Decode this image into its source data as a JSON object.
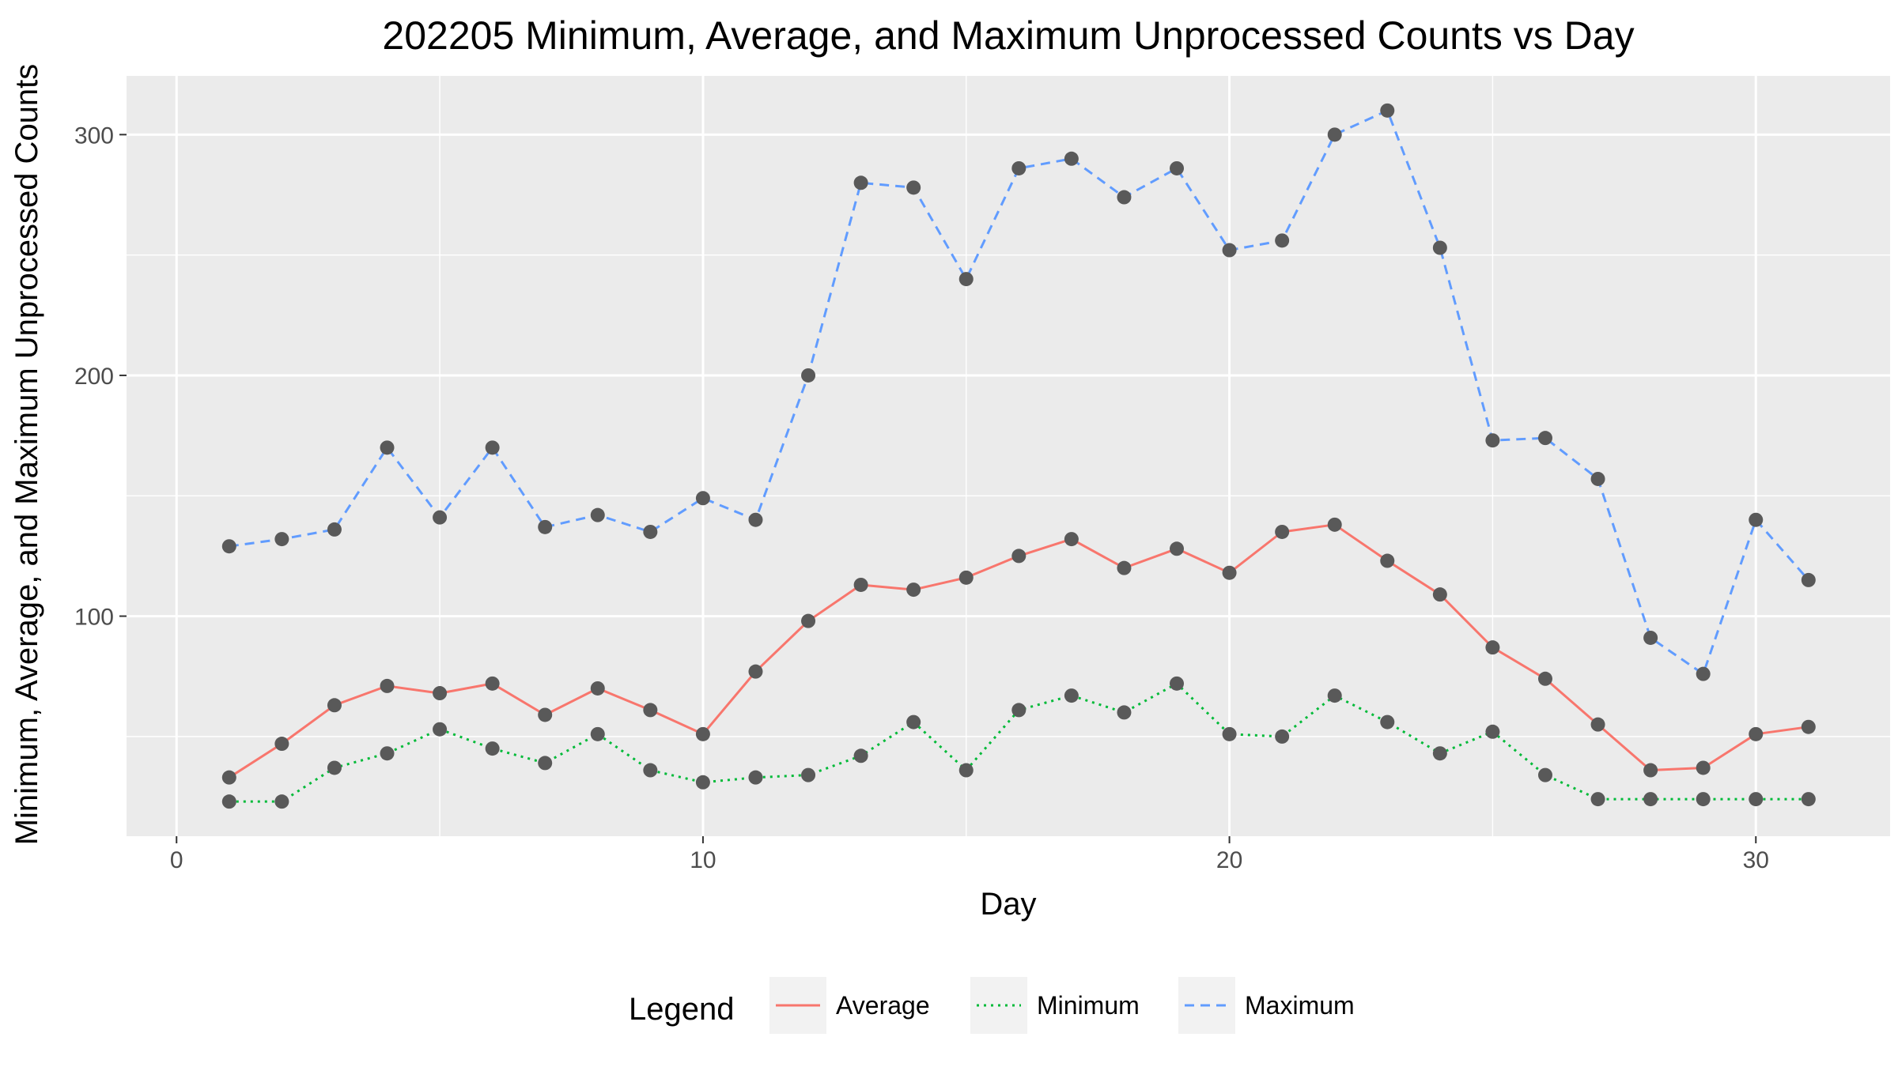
{
  "chart_data": {
    "type": "line",
    "title": "202205 Minimum, Average, and Maximum Unprocessed Counts vs Day",
    "xlabel": "Day",
    "ylabel": "Minimum, Average, and Maximum Unprocessed Counts",
    "x": [
      1,
      2,
      3,
      4,
      5,
      6,
      7,
      8,
      9,
      10,
      11,
      12,
      13,
      14,
      15,
      16,
      17,
      18,
      19,
      20,
      21,
      22,
      23,
      24,
      25,
      26,
      27,
      28,
      29,
      30,
      31
    ],
    "xlim": [
      -0.95,
      32.55
    ],
    "ylim": [
      8.6,
      324.4
    ],
    "x_ticks": [
      0,
      10,
      20,
      30
    ],
    "x_tick_labels": [
      "0",
      "10",
      "20",
      "30"
    ],
    "y_ticks": [
      100,
      200,
      300
    ],
    "y_tick_labels": [
      "100",
      "200",
      "300"
    ],
    "grid": true,
    "legend": {
      "title": "Legend",
      "position": "bottom"
    },
    "series": [
      {
        "name": "Average",
        "color": "#f8766d",
        "dash": "solid",
        "values": [
          33,
          47,
          63,
          71,
          68,
          72,
          59,
          70,
          61,
          51,
          77,
          98,
          113,
          111,
          116,
          125,
          132,
          120,
          128,
          118,
          135,
          138,
          123,
          109,
          87,
          74,
          55,
          36,
          37,
          51,
          54
        ]
      },
      {
        "name": "Minimum",
        "color": "#00ba38",
        "dash": "dotted",
        "values": [
          23,
          23,
          37,
          43,
          53,
          45,
          39,
          51,
          36,
          31,
          33,
          34,
          42,
          56,
          36,
          61,
          67,
          60,
          72,
          51,
          50,
          67,
          56,
          43,
          52,
          34,
          24,
          24,
          24,
          24,
          24
        ]
      },
      {
        "name": "Maximum",
        "color": "#619cff",
        "dash": "dashed",
        "values": [
          129,
          132,
          136,
          170,
          141,
          170,
          137,
          142,
          135,
          149,
          140,
          200,
          280,
          278,
          240,
          286,
          290,
          274,
          286,
          252,
          256,
          300,
          310,
          253,
          173,
          174,
          157,
          91,
          76,
          140,
          115
        ]
      }
    ],
    "point_color": "#595959"
  }
}
